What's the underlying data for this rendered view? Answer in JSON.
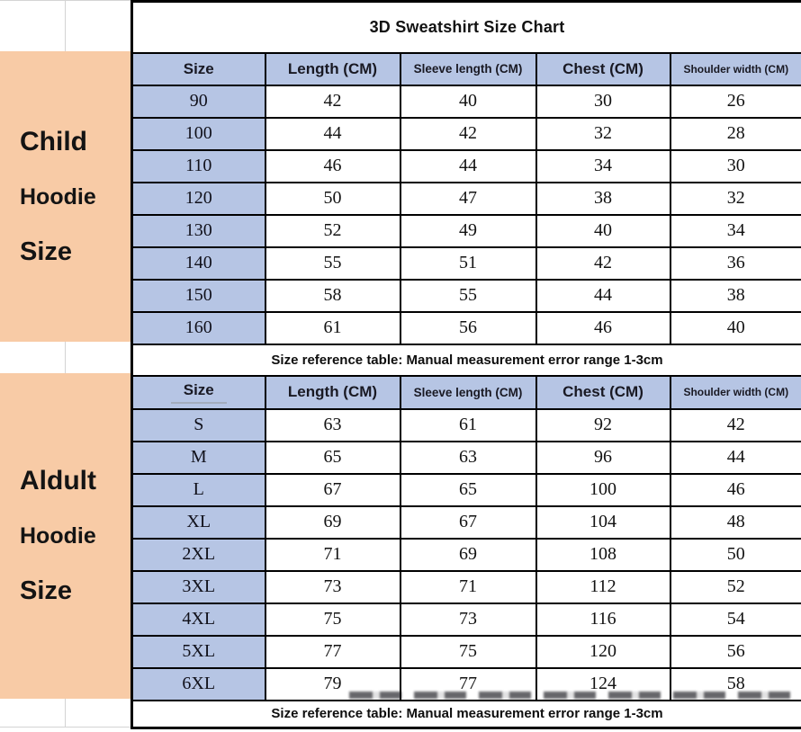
{
  "title": "3D Sweatshirt Size Chart",
  "sidebar": {
    "child": {
      "line1": "Child",
      "line2": "Hoodie",
      "line3": "Size"
    },
    "adult": {
      "line1": "Aldult",
      "line2": "Hoodie",
      "line3": "Size"
    }
  },
  "table": {
    "columns": [
      "Size",
      "Length (CM)",
      "Sleeve length (CM)",
      "Chest (CM)",
      "Shoulder width (CM)"
    ],
    "child_rows": [
      [
        "90",
        "42",
        "40",
        "30",
        "26"
      ],
      [
        "100",
        "44",
        "42",
        "32",
        "28"
      ],
      [
        "110",
        "46",
        "44",
        "34",
        "30"
      ],
      [
        "120",
        "50",
        "47",
        "38",
        "32"
      ],
      [
        "130",
        "52",
        "49",
        "40",
        "34"
      ],
      [
        "140",
        "55",
        "51",
        "42",
        "36"
      ],
      [
        "150",
        "58",
        "55",
        "44",
        "38"
      ],
      [
        "160",
        "61",
        "56",
        "46",
        "40"
      ]
    ],
    "adult_rows": [
      [
        "S",
        "63",
        "61",
        "92",
        "42"
      ],
      [
        "M",
        "65",
        "63",
        "96",
        "44"
      ],
      [
        "L",
        "67",
        "65",
        "100",
        "46"
      ],
      [
        "XL",
        "69",
        "67",
        "104",
        "48"
      ],
      [
        "2XL",
        "71",
        "69",
        "108",
        "50"
      ],
      [
        "3XL",
        "73",
        "71",
        "112",
        "52"
      ],
      [
        "4XL",
        "75",
        "73",
        "116",
        "54"
      ],
      [
        "5XL",
        "77",
        "75",
        "120",
        "56"
      ],
      [
        "6XL",
        "79",
        "77",
        "124",
        "58"
      ]
    ],
    "child_note": "Size reference table: Manual measurement error range 1-3cm",
    "adult_note": "Size reference table: Manual measurement error range 1-3cm"
  },
  "colors": {
    "header_fill": "#b6c5e4",
    "sidebar_fill": "#f8cba6",
    "border": "#000000",
    "adult_chest_text": "#4b2545"
  }
}
